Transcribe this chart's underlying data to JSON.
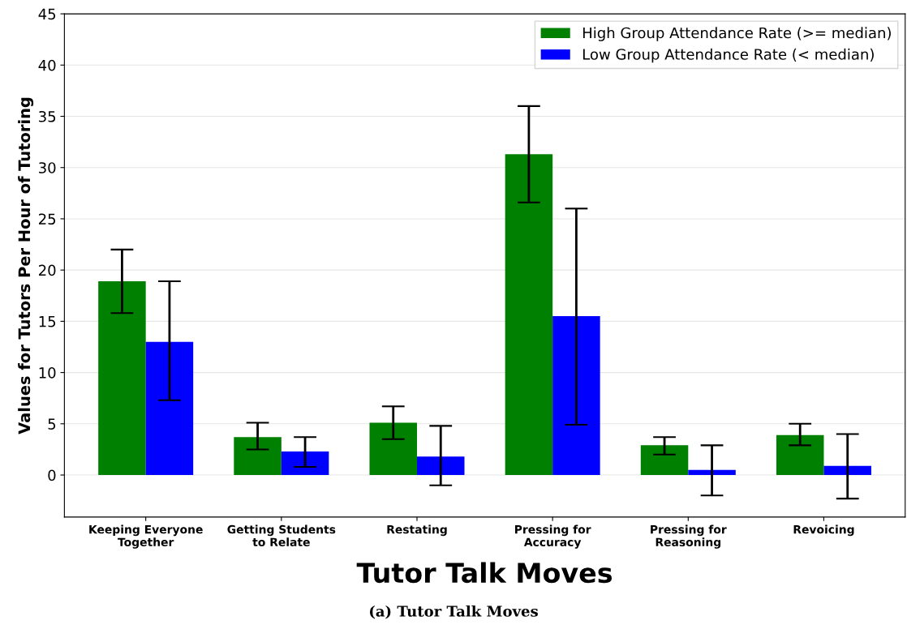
{
  "chart_data": {
    "type": "bar",
    "categories": [
      "Keeping Everyone\nTogether",
      "Getting Students\nto Relate",
      "Restating",
      "Pressing for\nAccuracy",
      "Pressing for\nReasoning",
      "Revoicing"
    ],
    "series": [
      {
        "name": "High Group Attendance Rate (>= median)",
        "color": "#008000",
        "values": [
          18.9,
          3.7,
          5.1,
          31.3,
          2.9,
          3.9
        ],
        "errors": [
          [
            15.8,
            22.0
          ],
          [
            2.5,
            5.1
          ],
          [
            3.5,
            6.7
          ],
          [
            26.6,
            36.0
          ],
          [
            2.0,
            3.7
          ],
          [
            2.9,
            5.0
          ]
        ]
      },
      {
        "name": "Low Group Attendance Rate (< median)",
        "color": "#0000ff",
        "values": [
          13.0,
          2.3,
          1.8,
          15.5,
          0.5,
          0.9
        ],
        "errors": [
          [
            7.3,
            18.9
          ],
          [
            0.8,
            3.7
          ],
          [
            -1.0,
            4.8
          ],
          [
            4.9,
            26.0
          ],
          [
            -2.0,
            2.9
          ],
          [
            -2.3,
            4.0
          ]
        ]
      }
    ],
    "xlabel": "Tutor Talk Moves",
    "ylabel": "Values for Tutors Per Hour of Tutoring",
    "ylim": [
      -4.1,
      45
    ],
    "yticks": [
      0,
      5,
      10,
      15,
      20,
      25,
      30,
      35,
      40,
      45
    ],
    "grid": "y",
    "legend": "top right",
    "annotations": [
      "(a) Tutor Talk Moves"
    ]
  }
}
